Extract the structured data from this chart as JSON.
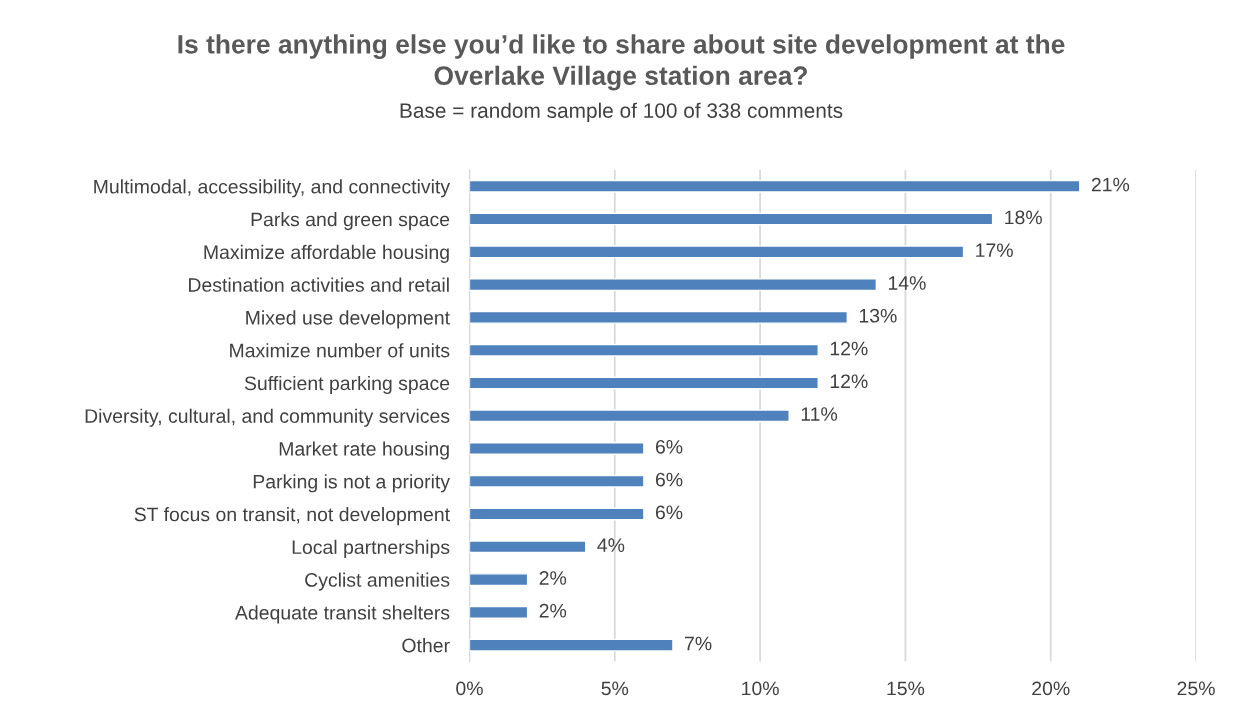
{
  "chart_data": {
    "type": "bar",
    "orientation": "horizontal",
    "title": "Is there anything else you’d like to share about site development at the\nOverlake Village station area?",
    "subtitle": "Base = random sample of 100 of 338 comments",
    "categories": [
      "Multimodal, accessibility, and connectivity",
      "Parks and green space",
      "Maximize affordable housing",
      "Destination activities and retail",
      "Mixed use development",
      "Maximize number of units",
      "Sufficient parking space",
      "Diversity, cultural, and community services",
      "Market rate housing",
      "Parking is not a priority",
      "ST focus on transit, not development",
      "Local partnerships",
      "Cyclist amenities",
      "Adequate transit shelters",
      "Other"
    ],
    "values": [
      21,
      18,
      17,
      14,
      13,
      12,
      12,
      11,
      6,
      6,
      6,
      4,
      2,
      2,
      7
    ],
    "value_labels": [
      "21%",
      "18%",
      "17%",
      "14%",
      "13%",
      "12%",
      "12%",
      "11%",
      "6%",
      "6%",
      "6%",
      "4%",
      "2%",
      "2%",
      "7%"
    ],
    "color": "#4f81bd",
    "xlim": [
      0,
      25
    ],
    "xticks": [
      {
        "value": 0,
        "label": "0%"
      },
      {
        "value": 5,
        "label": "5%"
      },
      {
        "value": 10,
        "label": "10%"
      },
      {
        "value": 15,
        "label": "15%"
      },
      {
        "value": 20,
        "label": "20%"
      },
      {
        "value": 25,
        "label": "25%"
      }
    ],
    "grid": "x",
    "legend": false
  }
}
